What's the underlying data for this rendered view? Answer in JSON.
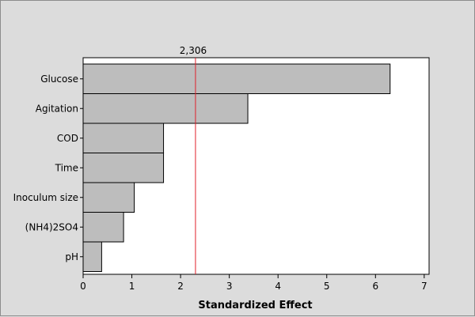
{
  "chart_data": {
    "type": "bar",
    "orientation": "horizontal",
    "categories": [
      "Glucose",
      "Agitation",
      "COD",
      "Time",
      "Inoculum size",
      "(NH4)2SO4",
      "pH"
    ],
    "values": [
      6.3,
      3.38,
      1.65,
      1.65,
      1.05,
      0.83,
      0.38
    ],
    "xlabel": "Standardized Effect",
    "ylabel": "",
    "xlim": [
      0,
      7.1
    ],
    "xticks": [
      0,
      1,
      2,
      3,
      4,
      5,
      6,
      7
    ],
    "reference_line": {
      "value": 2.306,
      "label": "2,306",
      "color": "#e0202a"
    },
    "bar_color": "#bdbdbd",
    "grid": false,
    "background": "#dcdcdc",
    "plot_background": "#ffffff"
  }
}
